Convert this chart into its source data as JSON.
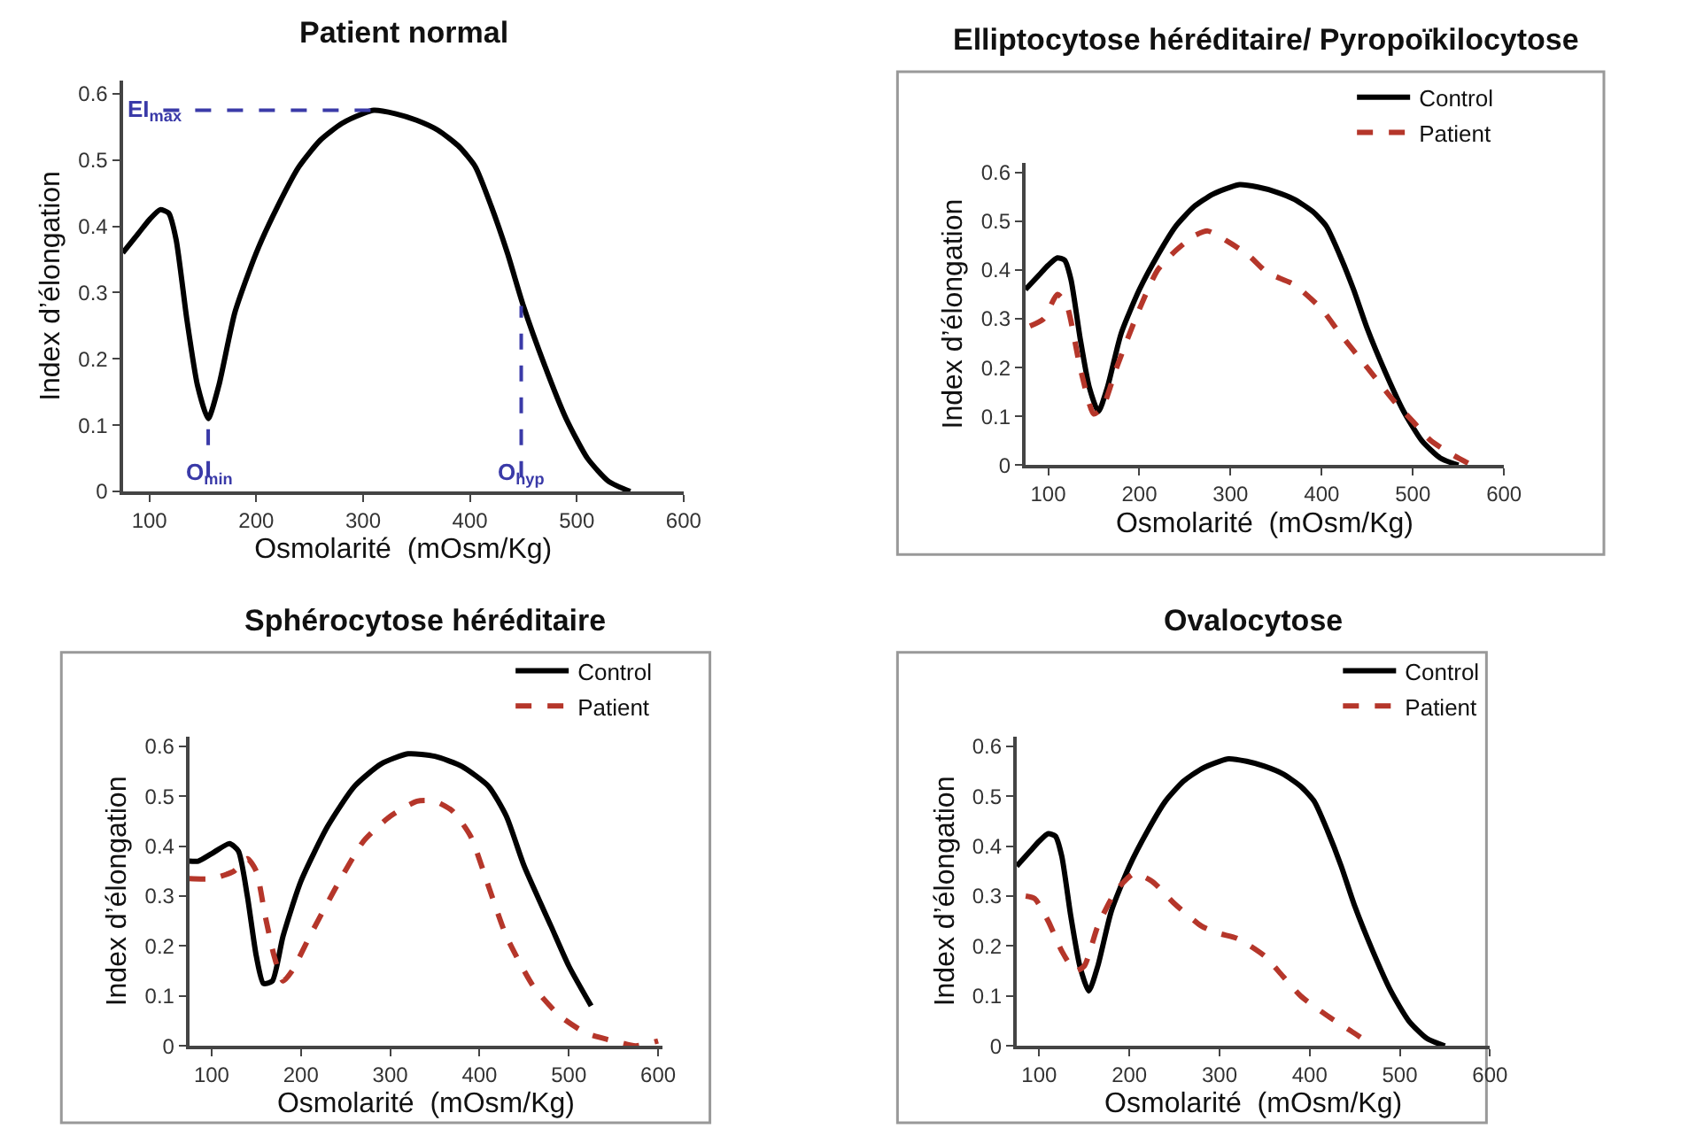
{
  "chart_data": [
    {
      "type": "line",
      "title": "Patient normal",
      "xlabel": "Osmolarité  (mOsm/Kg)",
      "ylabel": "Index d’élongation",
      "xlim": [
        75,
        600
      ],
      "xticks": [
        100,
        200,
        300,
        400,
        500,
        600
      ],
      "ylim": [
        0,
        0.62
      ],
      "yticks": [
        0,
        0.1,
        0.2,
        0.3,
        0.4,
        0.5,
        0.6
      ],
      "series": [
        {
          "color": "#000000",
          "line_style": "solid",
          "x": [
            75,
            90,
            100,
            110,
            118,
            125,
            135,
            145,
            155,
            165,
            180,
            200,
            220,
            240,
            260,
            280,
            300,
            310,
            330,
            350,
            370,
            390,
            405,
            420,
            435,
            450,
            470,
            490,
            510,
            530,
            550
          ],
          "values": [
            0.36,
            0.39,
            0.41,
            0.425,
            0.42,
            0.38,
            0.26,
            0.16,
            0.11,
            0.16,
            0.27,
            0.36,
            0.43,
            0.49,
            0.53,
            0.555,
            0.57,
            0.575,
            0.57,
            0.56,
            0.545,
            0.52,
            0.49,
            0.43,
            0.36,
            0.28,
            0.19,
            0.11,
            0.05,
            0.015,
            0
          ]
        }
      ],
      "annotations": [
        {
          "text": "EI$_{max}$",
          "x": 310,
          "y": 0.575
        },
        {
          "text": "O$_{min}$",
          "x": 155,
          "y": 0.11
        },
        {
          "text": "O$_{hyp}$",
          "x": 448,
          "y": 0.28
        }
      ]
    },
    {
      "type": "line",
      "title": "Elliptocytose héréditaire/ Pyropoïkilocytose",
      "xlabel": "Osmolarité  (mOsm/Kg)",
      "ylabel": "Index d’élongation",
      "xlim": [
        75,
        600
      ],
      "xticks": [
        100,
        200,
        300,
        400,
        500,
        600
      ],
      "ylim": [
        0,
        0.62
      ],
      "yticks": [
        0,
        0.1,
        0.2,
        0.3,
        0.4,
        0.5,
        0.6
      ],
      "legend": "top right",
      "series": [
        {
          "name": "Control",
          "color": "#000000",
          "line_style": "solid",
          "x": [
            75,
            90,
            100,
            110,
            118,
            125,
            135,
            145,
            155,
            165,
            180,
            200,
            220,
            240,
            260,
            280,
            300,
            310,
            330,
            350,
            370,
            390,
            405,
            420,
            435,
            450,
            470,
            490,
            510,
            530,
            550
          ],
          "values": [
            0.36,
            0.39,
            0.41,
            0.425,
            0.42,
            0.38,
            0.26,
            0.16,
            0.11,
            0.16,
            0.27,
            0.36,
            0.43,
            0.49,
            0.53,
            0.555,
            0.57,
            0.575,
            0.57,
            0.56,
            0.545,
            0.52,
            0.49,
            0.43,
            0.36,
            0.28,
            0.19,
            0.11,
            0.05,
            0.015,
            0
          ]
        },
        {
          "name": "Patient",
          "color": "#b5362a",
          "line_style": "dashed",
          "x": [
            80,
            95,
            110,
            120,
            135,
            150,
            160,
            175,
            200,
            220,
            240,
            260,
            275,
            300,
            320,
            340,
            370,
            400,
            420,
            450,
            480,
            500,
            520,
            545,
            565
          ],
          "values": [
            0.285,
            0.3,
            0.35,
            0.33,
            0.2,
            0.105,
            0.12,
            0.2,
            0.32,
            0.4,
            0.44,
            0.47,
            0.48,
            0.455,
            0.43,
            0.395,
            0.37,
            0.32,
            0.27,
            0.2,
            0.13,
            0.09,
            0.05,
            0.02,
            0
          ]
        }
      ]
    },
    {
      "type": "line",
      "title": "Sphérocytose héréditaire",
      "xlabel": "Osmolarité  (mOsm/Kg)",
      "ylabel": "Index d’élongation",
      "xlim": [
        75,
        605
      ],
      "xticks": [
        100,
        200,
        300,
        400,
        500,
        600
      ],
      "ylim": [
        0,
        0.62
      ],
      "yticks": [
        0,
        0.1,
        0.2,
        0.3,
        0.4,
        0.5,
        0.6
      ],
      "legend": "top right",
      "series": [
        {
          "name": "Control",
          "color": "#000000",
          "line_style": "solid",
          "x": [
            75,
            85,
            100,
            120,
            130,
            140,
            150,
            158,
            168,
            180,
            200,
            230,
            260,
            290,
            320,
            350,
            380,
            410,
            430,
            450,
            480,
            500,
            525
          ],
          "values": [
            0.37,
            0.37,
            0.385,
            0.405,
            0.39,
            0.3,
            0.18,
            0.125,
            0.13,
            0.22,
            0.33,
            0.44,
            0.52,
            0.565,
            0.585,
            0.58,
            0.56,
            0.52,
            0.46,
            0.36,
            0.24,
            0.16,
            0.08
          ]
        },
        {
          "name": "Patient",
          "color": "#b5362a",
          "line_style": "dashed",
          "x": [
            75,
            100,
            125,
            140,
            150,
            160,
            170,
            180,
            190,
            210,
            240,
            270,
            300,
            330,
            350,
            370,
            390,
            410,
            430,
            460,
            490,
            520,
            550,
            575,
            600
          ],
          "values": [
            0.335,
            0.335,
            0.35,
            0.375,
            0.35,
            0.26,
            0.18,
            0.13,
            0.15,
            0.22,
            0.32,
            0.41,
            0.46,
            0.49,
            0.49,
            0.47,
            0.42,
            0.32,
            0.22,
            0.12,
            0.06,
            0.025,
            0.01,
            0,
            0.01
          ]
        }
      ]
    },
    {
      "type": "line",
      "title": "Ovalocytose",
      "xlabel": "Osmolarité  (mOsm/Kg)",
      "ylabel": "Index d’élongation",
      "xlim": [
        75,
        600
      ],
      "xticks": [
        100,
        200,
        300,
        400,
        500,
        600
      ],
      "ylim": [
        0,
        0.62
      ],
      "yticks": [
        0,
        0.1,
        0.2,
        0.3,
        0.4,
        0.5,
        0.6
      ],
      "legend": "top right",
      "series": [
        {
          "name": "Control",
          "color": "#000000",
          "line_style": "solid",
          "x": [
            75,
            90,
            100,
            110,
            118,
            125,
            135,
            145,
            155,
            165,
            180,
            200,
            220,
            240,
            260,
            280,
            300,
            310,
            330,
            350,
            370,
            390,
            405,
            420,
            435,
            450,
            470,
            490,
            510,
            530,
            550
          ],
          "values": [
            0.36,
            0.39,
            0.41,
            0.425,
            0.42,
            0.38,
            0.26,
            0.16,
            0.11,
            0.16,
            0.27,
            0.36,
            0.43,
            0.49,
            0.53,
            0.555,
            0.57,
            0.575,
            0.57,
            0.56,
            0.545,
            0.52,
            0.49,
            0.43,
            0.36,
            0.28,
            0.19,
            0.11,
            0.05,
            0.015,
            0
          ]
        },
        {
          "name": "Patient",
          "color": "#b5362a",
          "line_style": "dashed",
          "x": [
            85,
            95,
            110,
            125,
            140,
            150,
            165,
            185,
            205,
            225,
            250,
            280,
            300,
            320,
            350,
            370,
            390,
            420,
            450,
            470
          ],
          "values": [
            0.3,
            0.295,
            0.25,
            0.19,
            0.15,
            0.16,
            0.24,
            0.31,
            0.345,
            0.33,
            0.285,
            0.24,
            0.225,
            0.215,
            0.18,
            0.14,
            0.1,
            0.06,
            0.025,
            0
          ]
        }
      ]
    }
  ]
}
